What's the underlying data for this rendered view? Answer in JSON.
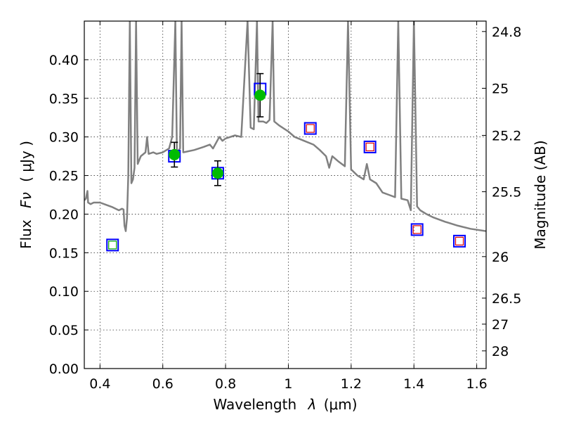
{
  "chart_data": {
    "type": "scatter",
    "xlabel": "Wavelength",
    "xlabel_symbol": "λ",
    "xlabel_unit": "(μm)",
    "ylabel": "Flux",
    "ylabel_symbol": "Fν",
    "ylabel_unit": "( μJy )",
    "y2label": "Magnitude (AB)",
    "xlim": [
      0.35,
      1.63
    ],
    "ylim": [
      0.0,
      0.45
    ],
    "grid": true,
    "x_ticks": [
      0.4,
      0.6,
      0.8,
      1.0,
      1.2,
      1.4,
      1.6
    ],
    "x_tick_labels": [
      "0.4",
      "0.6",
      "0.8",
      "1",
      "1.2",
      "1.4",
      "1.6"
    ],
    "y_ticks": [
      0.0,
      0.05,
      0.1,
      0.15,
      0.2,
      0.25,
      0.3,
      0.35,
      0.4
    ],
    "y_tick_labels": [
      "0.00",
      "0.05",
      "0.10",
      "0.15",
      "0.20",
      "0.25",
      "0.30",
      "0.35",
      "0.40"
    ],
    "y2_ticks": [
      {
        "label": "24.8",
        "flux": 0.4365
      },
      {
        "label": "25",
        "flux": 0.363
      },
      {
        "label": "25.2",
        "flux": 0.302
      },
      {
        "label": "25.5",
        "flux": 0.229
      },
      {
        "label": "26",
        "flux": 0.145
      },
      {
        "label": "26.5",
        "flux": 0.0912
      },
      {
        "label": "27",
        "flux": 0.0575
      },
      {
        "label": "28",
        "flux": 0.0229
      }
    ],
    "series": [
      {
        "type": "line",
        "color": "#808080",
        "points": [
          [
            0.35,
            0.218
          ],
          [
            0.355,
            0.22
          ],
          [
            0.36,
            0.23
          ],
          [
            0.362,
            0.215
          ],
          [
            0.37,
            0.213
          ],
          [
            0.38,
            0.215
          ],
          [
            0.4,
            0.215
          ],
          [
            0.42,
            0.212
          ],
          [
            0.44,
            0.209
          ],
          [
            0.46,
            0.205
          ],
          [
            0.47,
            0.207
          ],
          [
            0.475,
            0.206
          ],
          [
            0.478,
            0.185
          ],
          [
            0.482,
            0.178
          ],
          [
            0.486,
            0.195
          ],
          [
            0.49,
            0.25
          ],
          [
            0.495,
            0.45
          ],
          [
            0.5,
            0.24
          ],
          [
            0.505,
            0.245
          ],
          [
            0.51,
            0.26
          ],
          [
            0.515,
            0.45
          ],
          [
            0.52,
            0.265
          ],
          [
            0.53,
            0.275
          ],
          [
            0.545,
            0.28
          ],
          [
            0.55,
            0.3
          ],
          [
            0.555,
            0.278
          ],
          [
            0.57,
            0.28
          ],
          [
            0.58,
            0.278
          ],
          [
            0.6,
            0.28
          ],
          [
            0.62,
            0.285
          ],
          [
            0.63,
            0.3
          ],
          [
            0.64,
            0.45
          ],
          [
            0.645,
            0.28
          ],
          [
            0.655,
            0.285
          ],
          [
            0.66,
            0.45
          ],
          [
            0.665,
            0.28
          ],
          [
            0.7,
            0.283
          ],
          [
            0.73,
            0.287
          ],
          [
            0.75,
            0.29
          ],
          [
            0.76,
            0.285
          ],
          [
            0.78,
            0.3
          ],
          [
            0.79,
            0.295
          ],
          [
            0.8,
            0.298
          ],
          [
            0.83,
            0.302
          ],
          [
            0.85,
            0.3
          ],
          [
            0.87,
            0.45
          ],
          [
            0.88,
            0.312
          ],
          [
            0.89,
            0.31
          ],
          [
            0.9,
            0.45
          ],
          [
            0.905,
            0.32
          ],
          [
            0.92,
            0.32
          ],
          [
            0.93,
            0.318
          ],
          [
            0.94,
            0.322
          ],
          [
            0.95,
            0.45
          ],
          [
            0.955,
            0.32
          ],
          [
            0.97,
            0.315
          ],
          [
            1.0,
            0.307
          ],
          [
            1.02,
            0.3
          ],
          [
            1.05,
            0.295
          ],
          [
            1.08,
            0.29
          ],
          [
            1.1,
            0.283
          ],
          [
            1.12,
            0.275
          ],
          [
            1.13,
            0.26
          ],
          [
            1.14,
            0.275
          ],
          [
            1.16,
            0.268
          ],
          [
            1.18,
            0.262
          ],
          [
            1.19,
            0.45
          ],
          [
            1.2,
            0.258
          ],
          [
            1.22,
            0.25
          ],
          [
            1.24,
            0.245
          ],
          [
            1.25,
            0.265
          ],
          [
            1.26,
            0.245
          ],
          [
            1.28,
            0.24
          ],
          [
            1.3,
            0.228
          ],
          [
            1.32,
            0.225
          ],
          [
            1.34,
            0.222
          ],
          [
            1.35,
            0.45
          ],
          [
            1.36,
            0.22
          ],
          [
            1.38,
            0.218
          ],
          [
            1.39,
            0.205
          ],
          [
            1.4,
            0.45
          ],
          [
            1.41,
            0.21
          ],
          [
            1.42,
            0.205
          ],
          [
            1.44,
            0.2
          ],
          [
            1.46,
            0.196
          ],
          [
            1.5,
            0.19
          ],
          [
            1.54,
            0.185
          ],
          [
            1.58,
            0.181
          ],
          [
            1.63,
            0.178
          ]
        ]
      },
      {
        "type": "marker",
        "marker": "square",
        "color": "#0000ff",
        "points": [
          [
            0.44,
            0.16
          ],
          [
            0.637,
            0.275
          ],
          [
            0.775,
            0.253
          ],
          [
            0.91,
            0.362
          ],
          [
            1.07,
            0.311
          ],
          [
            1.26,
            0.287
          ],
          [
            1.41,
            0.18
          ],
          [
            1.545,
            0.165
          ]
        ]
      },
      {
        "type": "marker",
        "marker": "small-square",
        "color": "#dd0000",
        "points": [
          [
            1.07,
            0.311
          ],
          [
            1.26,
            0.287
          ],
          [
            1.41,
            0.18
          ],
          [
            1.545,
            0.165
          ]
        ]
      },
      {
        "type": "marker",
        "marker": "small-square",
        "color": "#00aa00",
        "points": [
          [
            0.44,
            0.16
          ]
        ]
      },
      {
        "type": "errorbar",
        "marker": "circle",
        "color": "#00bb00",
        "points": [
          {
            "x": 0.637,
            "y": 0.277,
            "yerr": 0.016
          },
          {
            "x": 0.775,
            "y": 0.253,
            "yerr": 0.016
          },
          {
            "x": 0.91,
            "y": 0.354,
            "yerr": 0.028
          }
        ]
      }
    ]
  }
}
